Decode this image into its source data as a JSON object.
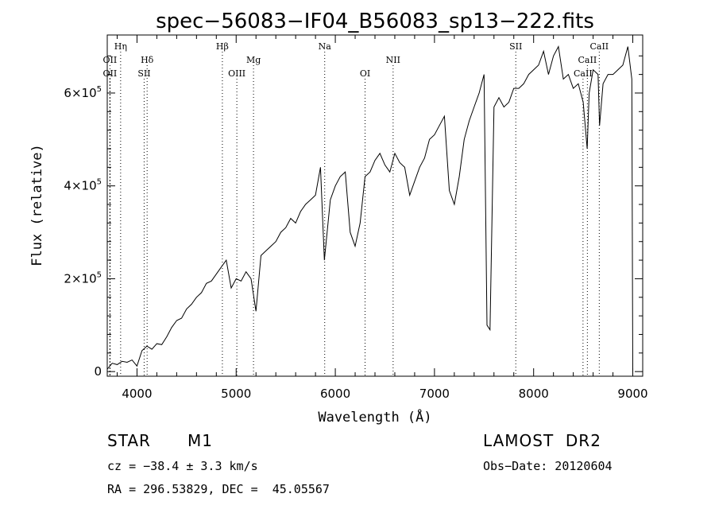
{
  "chart_data": {
    "type": "line",
    "title": "spec−56083−IF04_B56083_sp13−222.fits",
    "xlabel": "Wavelength (Å)",
    "ylabel": "Flux (relative)",
    "xlim": [
      3700,
      9100
    ],
    "ylim": [
      -10000,
      725000
    ],
    "x_ticks": [
      4000,
      5000,
      6000,
      7000,
      8000,
      9000
    ],
    "y_ticks": [
      {
        "value": 0,
        "label": "0"
      },
      {
        "value": 200000,
        "label": "2×10",
        "exp": "5"
      },
      {
        "value": 400000,
        "label": "4×10",
        "exp": "5"
      },
      {
        "value": 600000,
        "label": "6×10",
        "exp": "5"
      }
    ],
    "series": [
      {
        "x": [
          3700,
          3750,
          3800,
          3850,
          3900,
          3950,
          4000,
          4050,
          4100,
          4150,
          4200,
          4250,
          4300,
          4350,
          4400,
          4450,
          4500,
          4550,
          4600,
          4650,
          4700,
          4750,
          4800,
          4850,
          4900,
          4950,
          5000,
          5050,
          5100,
          5150,
          5200,
          5250,
          5300,
          5350,
          5400,
          5450,
          5500,
          5550,
          5600,
          5650,
          5700,
          5750,
          5800,
          5850,
          5890,
          5950,
          6000,
          6050,
          6100,
          6150,
          6200,
          6250,
          6300,
          6350,
          6400,
          6450,
          6500,
          6550,
          6600,
          6650,
          6700,
          6750,
          6800,
          6850,
          6900,
          6950,
          7000,
          7050,
          7100,
          7150,
          7200,
          7250,
          7300,
          7350,
          7400,
          7450,
          7500,
          7530,
          7560,
          7600,
          7650,
          7700,
          7750,
          7800,
          7850,
          7900,
          7950,
          8000,
          8050,
          8100,
          8150,
          8200,
          8250,
          8300,
          8350,
          8400,
          8450,
          8500,
          8540,
          8560,
          8600,
          8650,
          8665,
          8700,
          8750,
          8800,
          8850,
          8900,
          8950,
          8990,
          9000
        ],
        "y": [
          5000,
          18000,
          15000,
          22000,
          20000,
          25000,
          12000,
          45000,
          55000,
          48000,
          60000,
          58000,
          75000,
          95000,
          110000,
          115000,
          135000,
          145000,
          160000,
          170000,
          190000,
          195000,
          210000,
          225000,
          240000,
          180000,
          200000,
          195000,
          215000,
          200000,
          130000,
          250000,
          260000,
          270000,
          280000,
          300000,
          310000,
          330000,
          320000,
          345000,
          360000,
          370000,
          380000,
          440000,
          240000,
          370000,
          400000,
          420000,
          430000,
          300000,
          270000,
          320000,
          420000,
          430000,
          455000,
          470000,
          445000,
          430000,
          470000,
          450000,
          440000,
          380000,
          410000,
          440000,
          460000,
          500000,
          510000,
          530000,
          550000,
          390000,
          360000,
          420000,
          500000,
          540000,
          570000,
          600000,
          640000,
          100000,
          90000,
          570000,
          590000,
          570000,
          580000,
          610000,
          610000,
          620000,
          640000,
          650000,
          660000,
          690000,
          640000,
          680000,
          700000,
          630000,
          640000,
          610000,
          620000,
          580000,
          480000,
          600000,
          650000,
          640000,
          530000,
          620000,
          640000,
          640000,
          650000,
          660000,
          700000,
          630000,
          0
        ]
      }
    ],
    "lines": [
      {
        "x": 3835,
        "label": "Hη",
        "row": 0
      },
      {
        "x": 3727,
        "label": "OII",
        "row": 1
      },
      {
        "x": 3727,
        "label": "OII",
        "row": 2
      },
      {
        "x": 4102,
        "label": "Hδ",
        "row": 1
      },
      {
        "x": 4072,
        "label": "SII",
        "row": 2
      },
      {
        "x": 4861,
        "label": "Hβ",
        "row": 0
      },
      {
        "x": 5007,
        "label": "OIII",
        "row": 2
      },
      {
        "x": 5175,
        "label": "Mg",
        "row": 1
      },
      {
        "x": 5893,
        "label": "Na",
        "row": 0
      },
      {
        "x": 6300,
        "label": "OI",
        "row": 2
      },
      {
        "x": 6583,
        "label": "NII",
        "row": 1
      },
      {
        "x": 7820,
        "label": "SII",
        "row": 0
      },
      {
        "x": 8662,
        "label": "CaII",
        "row": 0
      },
      {
        "x": 8542,
        "label": "CaII",
        "row": 1
      },
      {
        "x": 8498,
        "label": "CaII",
        "row": 2
      }
    ]
  },
  "info": {
    "object_class": "STAR",
    "subclass": "M1",
    "survey": "LAMOST  DR2",
    "cz": "cz = −38.4 ± 3.3 km/s",
    "obs_date": "Obs−Date: 20120604",
    "coords": "RA = 296.53829, DEC =  45.05567"
  }
}
